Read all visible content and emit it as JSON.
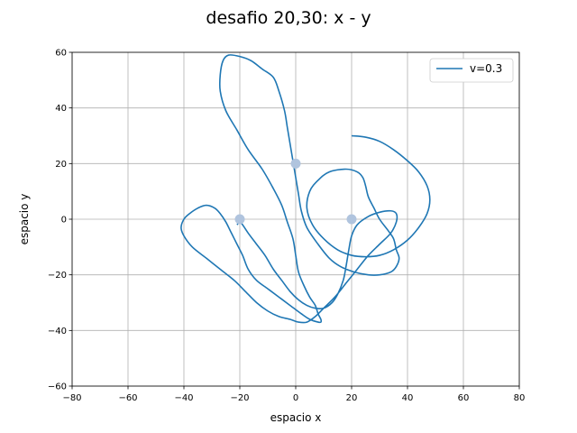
{
  "chart_data": {
    "type": "line",
    "title": "desafio 20,30: x - y",
    "xlabel": "espacio x",
    "ylabel": "espacio y",
    "xlim": [
      -80,
      80
    ],
    "ylim": [
      -60,
      60
    ],
    "xticks": [
      -80,
      -60,
      -40,
      -20,
      0,
      20,
      40,
      60,
      80
    ],
    "yticks": [
      -60,
      -40,
      -20,
      0,
      20,
      40,
      60
    ],
    "xtick_labels": [
      "−80",
      "−60",
      "−40",
      "−20",
      "0",
      "20",
      "40",
      "60",
      "80"
    ],
    "ytick_labels": [
      "−60",
      "−40",
      "−20",
      "0",
      "20",
      "40",
      "60"
    ],
    "grid": true,
    "legend_position": "top-right",
    "series": [
      {
        "name": "v=0.3",
        "color": "#1f77b4",
        "x": [
          20,
          25,
          30,
          35,
          40,
          44,
          47,
          48,
          47,
          44,
          40,
          35,
          30,
          25,
          20,
          15,
          10,
          6,
          4,
          5,
          8,
          12,
          18,
          22,
          24,
          25,
          26,
          28,
          30,
          33,
          35,
          36,
          37,
          36,
          34,
          30,
          26,
          21,
          16,
          12,
          8,
          4,
          2,
          1,
          0,
          -1,
          -2,
          -3,
          -4,
          -6,
          -8,
          -12,
          -16,
          -20,
          -24,
          -26,
          -27,
          -27,
          -25,
          -21,
          -17,
          -12,
          -8,
          -5,
          -3,
          -1,
          0,
          1,
          3,
          5,
          7,
          8,
          9,
          9,
          8,
          5,
          2,
          -2,
          -6,
          -10,
          -14,
          -17,
          -19,
          -21,
          -23,
          -25,
          -27,
          -29,
          -32,
          -35,
          -38,
          -40,
          -41,
          -40,
          -37,
          -32,
          -27,
          -22,
          -18,
          -14,
          -10,
          -6,
          -2,
          1,
          4,
          7,
          10,
          14,
          18,
          22,
          26,
          30,
          34,
          36,
          36,
          34,
          30,
          26,
          22,
          20,
          19,
          18,
          17,
          15,
          13,
          10,
          7,
          4,
          1,
          -2,
          -5,
          -8,
          -11,
          -14,
          -17,
          -19,
          -20,
          -21
        ],
        "y": [
          30,
          29.5,
          28,
          25,
          21,
          17,
          12,
          7,
          2,
          -3,
          -7.5,
          -11,
          -13,
          -13.5,
          -13,
          -11,
          -7,
          -2,
          4,
          10,
          14,
          17,
          18,
          17,
          15,
          12,
          8,
          4,
          0,
          -4,
          -7,
          -11,
          -14,
          -17,
          -19,
          -20,
          -20,
          -19,
          -17,
          -14,
          -9,
          -3,
          3,
          9,
          15,
          21,
          27,
          33,
          39,
          46,
          51,
          54,
          57,
          58.5,
          59,
          57,
          52,
          46,
          39,
          32,
          25,
          18,
          11,
          5,
          -1,
          -7,
          -13,
          -19,
          -24,
          -28,
          -31,
          -34,
          -36,
          -37,
          -37,
          -36,
          -34,
          -31,
          -28,
          -25,
          -22,
          -18,
          -13,
          -9,
          -5,
          -1,
          2,
          4,
          5,
          4,
          2,
          0,
          -3,
          -6,
          -10,
          -14,
          -18,
          -22,
          -26,
          -30,
          -33,
          -35,
          -36,
          -37,
          -37,
          -35,
          -32,
          -28,
          -23,
          -18,
          -13,
          -9,
          -5,
          -1,
          2,
          3,
          2.5,
          1,
          -2,
          -6,
          -11,
          -17,
          -22,
          -27,
          -30,
          -32,
          -32,
          -31,
          -29,
          -26,
          -22,
          -18,
          -13,
          -9,
          -5,
          -2,
          -1,
          -2
        ]
      }
    ],
    "markers": [
      {
        "x": 0,
        "y": 20,
        "color": "#b0c4de"
      },
      {
        "x": -20,
        "y": 0,
        "color": "#b0c4de"
      },
      {
        "x": 20,
        "y": 0,
        "color": "#b0c4de"
      }
    ]
  }
}
